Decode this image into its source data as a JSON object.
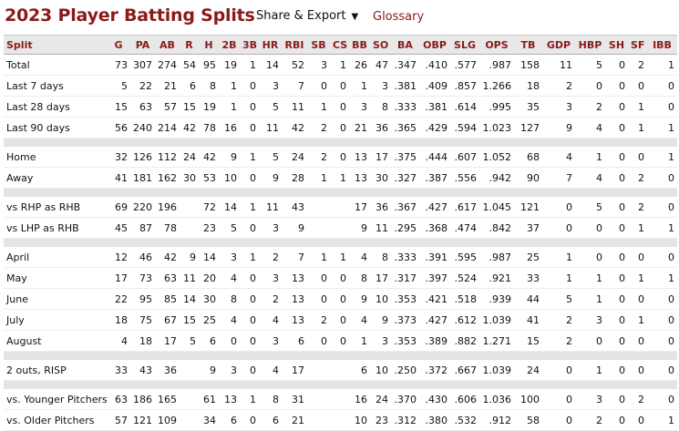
{
  "header": {
    "title": "2023 Player Batting Splits",
    "share_label": "Share & Export",
    "share_caret": "▼",
    "glossary_label": "Glossary"
  },
  "table": {
    "columns": [
      "Split",
      "G",
      "PA",
      "AB",
      "R",
      "H",
      "2B",
      "3B",
      "HR",
      "RBI",
      "SB",
      "CS",
      "BB",
      "SO",
      "BA",
      "OBP",
      "SLG",
      "OPS",
      "TB",
      "GDP",
      "HBP",
      "SH",
      "SF",
      "IBB"
    ],
    "groups": [
      [
        [
          "Total",
          "73",
          "307",
          "274",
          "54",
          "95",
          "19",
          "1",
          "14",
          "52",
          "3",
          "1",
          "26",
          "47",
          ".347",
          ".410",
          ".577",
          ".987",
          "158",
          "11",
          "5",
          "0",
          "2",
          "1"
        ],
        [
          "Last 7 days",
          "5",
          "22",
          "21",
          "6",
          "8",
          "1",
          "0",
          "3",
          "7",
          "0",
          "0",
          "1",
          "3",
          ".381",
          ".409",
          ".857",
          "1.266",
          "18",
          "2",
          "0",
          "0",
          "0",
          "0"
        ],
        [
          "Last 28 days",
          "15",
          "63",
          "57",
          "15",
          "19",
          "1",
          "0",
          "5",
          "11",
          "1",
          "0",
          "3",
          "8",
          ".333",
          ".381",
          ".614",
          ".995",
          "35",
          "3",
          "2",
          "0",
          "1",
          "0"
        ],
        [
          "Last 90 days",
          "56",
          "240",
          "214",
          "42",
          "78",
          "16",
          "0",
          "11",
          "42",
          "2",
          "0",
          "21",
          "36",
          ".365",
          ".429",
          ".594",
          "1.023",
          "127",
          "9",
          "4",
          "0",
          "1",
          "1"
        ]
      ],
      [
        [
          "Home",
          "32",
          "126",
          "112",
          "24",
          "42",
          "9",
          "1",
          "5",
          "24",
          "2",
          "0",
          "13",
          "17",
          ".375",
          ".444",
          ".607",
          "1.052",
          "68",
          "4",
          "1",
          "0",
          "0",
          "1"
        ],
        [
          "Away",
          "41",
          "181",
          "162",
          "30",
          "53",
          "10",
          "0",
          "9",
          "28",
          "1",
          "1",
          "13",
          "30",
          ".327",
          ".387",
          ".556",
          ".942",
          "90",
          "7",
          "4",
          "0",
          "2",
          "0"
        ]
      ],
      [
        [
          "vs RHP as RHB",
          "69",
          "220",
          "196",
          "",
          "72",
          "14",
          "1",
          "11",
          "43",
          "",
          "",
          "17",
          "36",
          ".367",
          ".427",
          ".617",
          "1.045",
          "121",
          "0",
          "5",
          "0",
          "2",
          "0"
        ],
        [
          "vs LHP as RHB",
          "45",
          "87",
          "78",
          "",
          "23",
          "5",
          "0",
          "3",
          "9",
          "",
          "",
          "9",
          "11",
          ".295",
          ".368",
          ".474",
          ".842",
          "37",
          "0",
          "0",
          "0",
          "1",
          "1"
        ]
      ],
      [
        [
          "April",
          "12",
          "46",
          "42",
          "9",
          "14",
          "3",
          "1",
          "2",
          "7",
          "1",
          "1",
          "4",
          "8",
          ".333",
          ".391",
          ".595",
          ".987",
          "25",
          "1",
          "0",
          "0",
          "0",
          "0"
        ],
        [
          "May",
          "17",
          "73",
          "63",
          "11",
          "20",
          "4",
          "0",
          "3",
          "13",
          "0",
          "0",
          "8",
          "17",
          ".317",
          ".397",
          ".524",
          ".921",
          "33",
          "1",
          "1",
          "0",
          "1",
          "1"
        ],
        [
          "June",
          "22",
          "95",
          "85",
          "14",
          "30",
          "8",
          "0",
          "2",
          "13",
          "0",
          "0",
          "9",
          "10",
          ".353",
          ".421",
          ".518",
          ".939",
          "44",
          "5",
          "1",
          "0",
          "0",
          "0"
        ],
        [
          "July",
          "18",
          "75",
          "67",
          "15",
          "25",
          "4",
          "0",
          "4",
          "13",
          "2",
          "0",
          "4",
          "9",
          ".373",
          ".427",
          ".612",
          "1.039",
          "41",
          "2",
          "3",
          "0",
          "1",
          "0"
        ],
        [
          "August",
          "4",
          "18",
          "17",
          "5",
          "6",
          "0",
          "0",
          "3",
          "6",
          "0",
          "0",
          "1",
          "3",
          ".353",
          ".389",
          ".882",
          "1.271",
          "15",
          "2",
          "0",
          "0",
          "0",
          "0"
        ]
      ],
      [
        [
          "2 outs, RISP",
          "33",
          "43",
          "36",
          "",
          "9",
          "3",
          "0",
          "4",
          "17",
          "",
          "",
          "6",
          "10",
          ".250",
          ".372",
          ".667",
          "1.039",
          "24",
          "0",
          "1",
          "0",
          "0",
          "0"
        ]
      ],
      [
        [
          "vs. Younger Pitchers",
          "63",
          "186",
          "165",
          "",
          "61",
          "13",
          "1",
          "8",
          "31",
          "",
          "",
          "16",
          "24",
          ".370",
          ".430",
          ".606",
          "1.036",
          "100",
          "0",
          "3",
          "0",
          "2",
          "0"
        ],
        [
          "vs. Older Pitchers",
          "57",
          "121",
          "109",
          "",
          "34",
          "6",
          "0",
          "6",
          "21",
          "",
          "",
          "10",
          "23",
          ".312",
          ".380",
          ".532",
          ".912",
          "58",
          "0",
          "2",
          "0",
          "0",
          "1"
        ]
      ]
    ]
  }
}
